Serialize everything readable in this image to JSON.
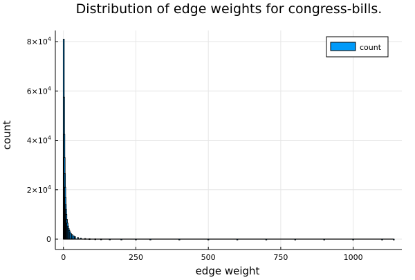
{
  "chart_data": {
    "type": "bar",
    "title": "Distribution of edge weights for congress-bills.",
    "xlabel": "edge weight",
    "ylabel": "count",
    "xlim": [
      -28,
      1168
    ],
    "ylim": [
      -4200,
      84500
    ],
    "grid": true,
    "legend_position": "top-right",
    "x_ticks": [
      {
        "value": 0,
        "label": "0"
      },
      {
        "value": 250,
        "label": "250"
      },
      {
        "value": 500,
        "label": "500"
      },
      {
        "value": 750,
        "label": "750"
      },
      {
        "value": 1000,
        "label": "1000"
      }
    ],
    "y_ticks": [
      {
        "value": 0,
        "mantissa": "0",
        "exponent": ""
      },
      {
        "value": 20000,
        "mantissa": "2×10",
        "exponent": "4"
      },
      {
        "value": 40000,
        "mantissa": "4×10",
        "exponent": "4"
      },
      {
        "value": 60000,
        "mantissa": "6×10",
        "exponent": "4"
      },
      {
        "value": 80000,
        "mantissa": "8×10",
        "exponent": "4"
      }
    ],
    "bar_color": "#009AF9",
    "series": [
      {
        "name": "count",
        "bins": [
          {
            "x": 1,
            "y": 81000
          },
          {
            "x": 2,
            "y": 57500
          },
          {
            "x": 3,
            "y": 42500
          },
          {
            "x": 4,
            "y": 33000
          },
          {
            "x": 5,
            "y": 26500
          },
          {
            "x": 6,
            "y": 21000
          },
          {
            "x": 7,
            "y": 17000
          },
          {
            "x": 8,
            "y": 14000
          },
          {
            "x": 9,
            "y": 12000
          },
          {
            "x": 10,
            "y": 10000
          },
          {
            "x": 12,
            "y": 8000
          },
          {
            "x": 14,
            "y": 6500
          },
          {
            "x": 16,
            "y": 5300
          },
          {
            "x": 18,
            "y": 4300
          },
          {
            "x": 20,
            "y": 3600
          },
          {
            "x": 23,
            "y": 2900
          },
          {
            "x": 26,
            "y": 2300
          },
          {
            "x": 30,
            "y": 1800
          },
          {
            "x": 35,
            "y": 1350
          },
          {
            "x": 40,
            "y": 1000
          },
          {
            "x": 50,
            "y": 650
          },
          {
            "x": 60,
            "y": 420
          },
          {
            "x": 75,
            "y": 260
          },
          {
            "x": 90,
            "y": 170
          },
          {
            "x": 110,
            "y": 110
          },
          {
            "x": 130,
            "y": 70
          },
          {
            "x": 160,
            "y": 40
          },
          {
            "x": 200,
            "y": 22
          },
          {
            "x": 250,
            "y": 12
          },
          {
            "x": 300,
            "y": 8
          },
          {
            "x": 400,
            "y": 5
          },
          {
            "x": 500,
            "y": 3
          },
          {
            "x": 600,
            "y": 2
          },
          {
            "x": 700,
            "y": 2
          },
          {
            "x": 800,
            "y": 1
          },
          {
            "x": 900,
            "y": 1
          },
          {
            "x": 1000,
            "y": 1
          },
          {
            "x": 1100,
            "y": 1
          },
          {
            "x": 1140,
            "y": 1
          }
        ]
      }
    ]
  }
}
